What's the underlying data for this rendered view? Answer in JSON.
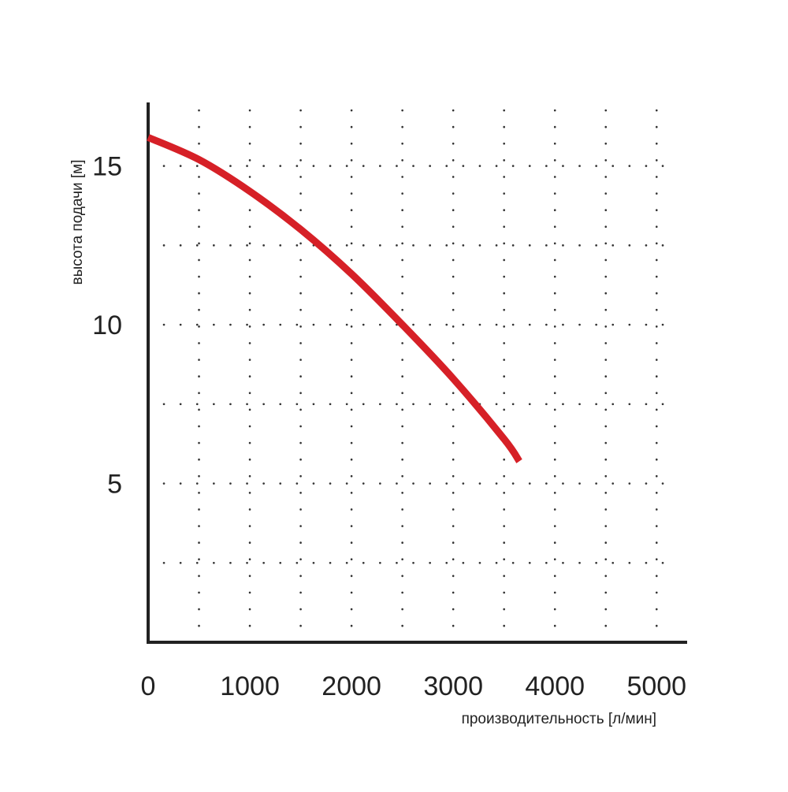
{
  "chart_data": {
    "type": "line",
    "title": "",
    "xlabel": "производительность [л/мин]",
    "ylabel": "высота подачи [м]",
    "xlim": [
      0,
      5300
    ],
    "ylim": [
      0,
      17
    ],
    "x_ticks": [
      0,
      1000,
      2000,
      3000,
      4000,
      5000
    ],
    "y_ticks": [
      5,
      10,
      15
    ],
    "grid": "dotted",
    "series": [
      {
        "x": [
          0,
          500,
          1000,
          1500,
          2000,
          2500,
          3000,
          3500,
          3650
        ],
        "y": [
          15.9,
          15.2,
          14.2,
          13.0,
          11.6,
          10.0,
          8.3,
          6.4,
          5.7
        ],
        "color": "#d62027"
      }
    ]
  },
  "colors": {
    "line": "#d62027",
    "axis": "#222222",
    "grid": "#333333"
  }
}
